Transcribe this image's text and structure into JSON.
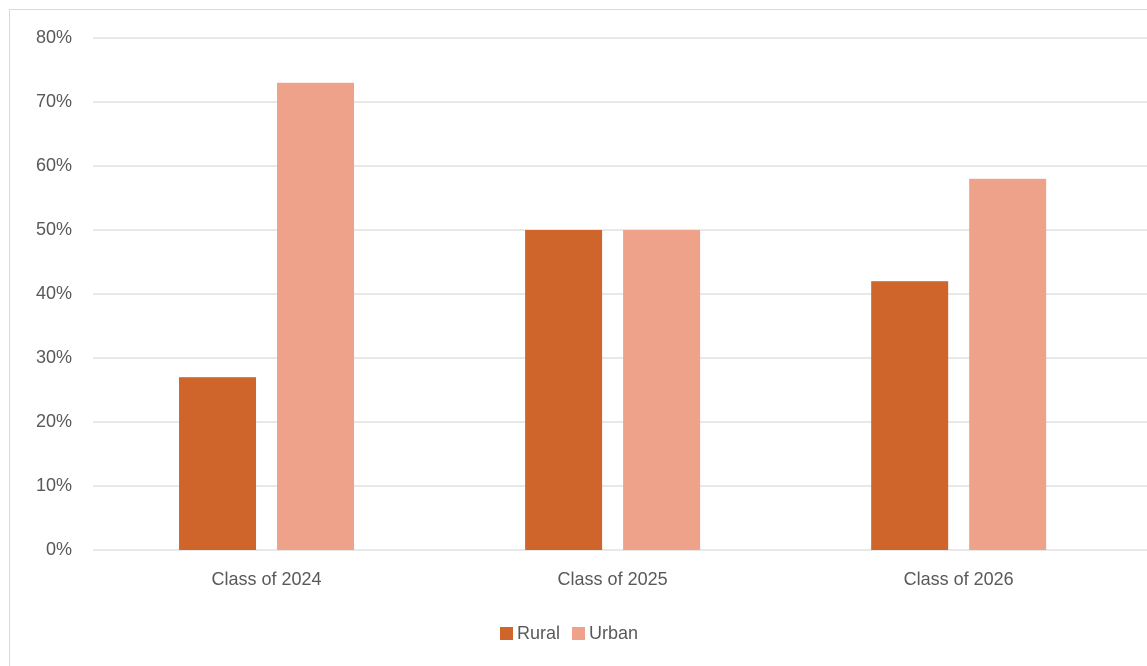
{
  "chart_data": {
    "type": "bar",
    "categories": [
      "Class of 2024",
      "Class of 2025",
      "Class of 2026"
    ],
    "series": [
      {
        "name": "Rural",
        "color": "#d0652b",
        "values": [
          27,
          50,
          42
        ]
      },
      {
        "name": "Urban",
        "color": "#efa28a",
        "values": [
          73,
          50,
          58
        ]
      }
    ],
    "ylim": [
      0,
      80
    ],
    "yticks": [
      {
        "value": 0,
        "label": "0%"
      },
      {
        "value": 10,
        "label": "10%"
      },
      {
        "value": 20,
        "label": "20%"
      },
      {
        "value": 30,
        "label": "30%"
      },
      {
        "value": 40,
        "label": "40%"
      },
      {
        "value": 50,
        "label": "50%"
      },
      {
        "value": 60,
        "label": "60%"
      },
      {
        "value": 70,
        "label": "70%"
      },
      {
        "value": 80,
        "label": "80%"
      }
    ],
    "grid": true,
    "legend": "bottom"
  }
}
